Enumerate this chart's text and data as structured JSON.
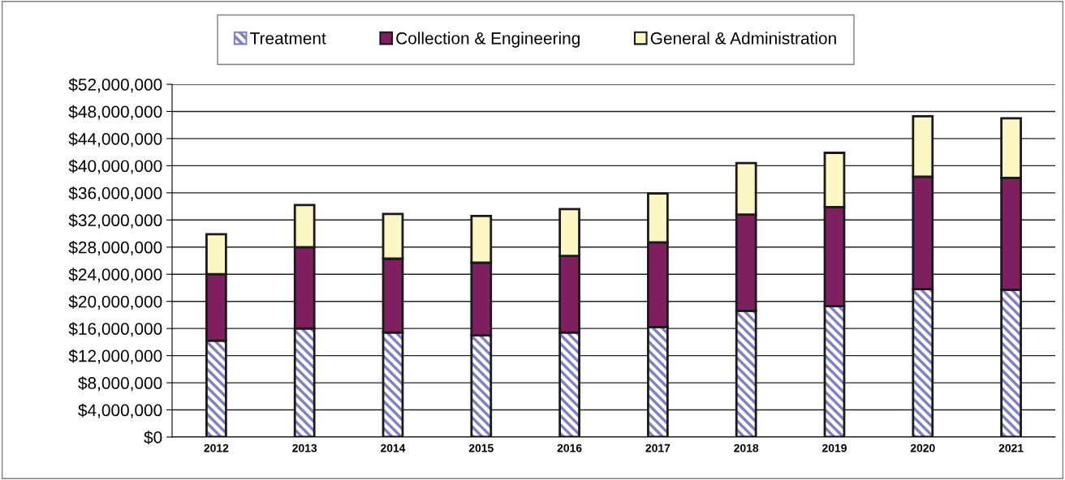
{
  "chart_data": {
    "type": "bar",
    "stacked": true,
    "categories": [
      "2012",
      "2013",
      "2014",
      "2015",
      "2016",
      "2017",
      "2018",
      "2019",
      "2020",
      "2021"
    ],
    "series": [
      {
        "name": "Treatment",
        "color": "#8080c8",
        "values": [
          14200000,
          16000000,
          15400000,
          15000000,
          15400000,
          16200000,
          18600000,
          19300000,
          21800000,
          21700000
        ]
      },
      {
        "name": "Collection & Engineering",
        "color": "#7f1f5f",
        "values": [
          9800000,
          12000000,
          10900000,
          10700000,
          11300000,
          12500000,
          14200000,
          14600000,
          16600000,
          16500000
        ]
      },
      {
        "name": "General & Administration",
        "color": "#faf7c2",
        "values": [
          5900000,
          6200000,
          6600000,
          6900000,
          6900000,
          7200000,
          7600000,
          8000000,
          8900000,
          8800000
        ]
      }
    ],
    "ylim": [
      0,
      52000000
    ],
    "yticks": [
      {
        "value": 0,
        "label": "$0"
      },
      {
        "value": 4000000,
        "label": "$4,000,000"
      },
      {
        "value": 8000000,
        "label": "$8,000,000"
      },
      {
        "value": 12000000,
        "label": "$12,000,000"
      },
      {
        "value": 16000000,
        "label": "$16,000,000"
      },
      {
        "value": 20000000,
        "label": "$20,000,000"
      },
      {
        "value": 24000000,
        "label": "$24,000,000"
      },
      {
        "value": 28000000,
        "label": "$28,000,000"
      },
      {
        "value": 32000000,
        "label": "$32,000,000"
      },
      {
        "value": 36000000,
        "label": "$36,000,000"
      },
      {
        "value": 40000000,
        "label": "$40,000,000"
      },
      {
        "value": 44000000,
        "label": "$44,000,000"
      },
      {
        "value": 48000000,
        "label": "$48,000,000"
      },
      {
        "value": 52000000,
        "label": "$52,000,000"
      }
    ],
    "grid": "y",
    "legend": "top"
  }
}
